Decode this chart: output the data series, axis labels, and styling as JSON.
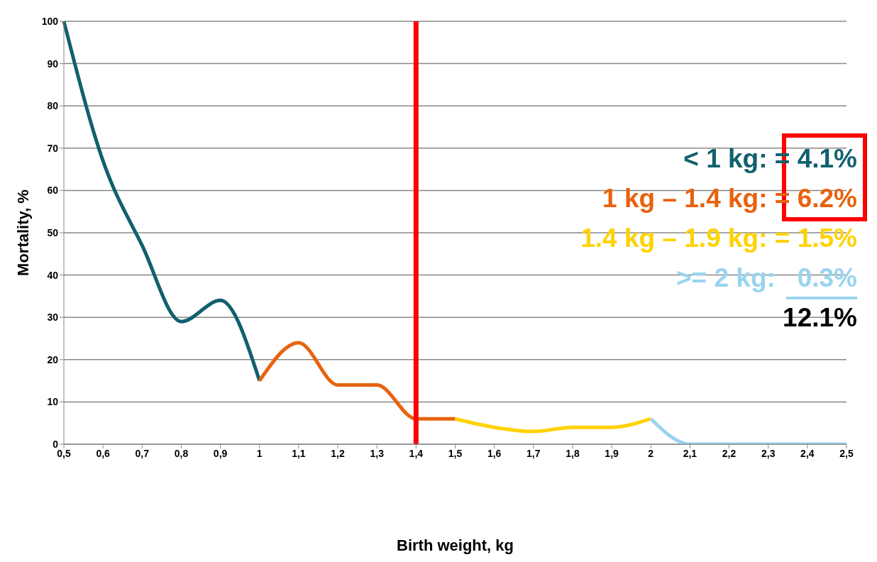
{
  "chart_data": {
    "type": "line",
    "xlabel": "Birth weight, kg",
    "ylabel": "Mortality, %",
    "categories": [
      "0,5",
      "0,6",
      "0,7",
      "0,8",
      "0,9",
      "1",
      "1,1",
      "1,2",
      "1,3",
      "1,4",
      "1,5",
      "1,6",
      "1,7",
      "1,8",
      "1,9",
      "2",
      "2,1",
      "2,2",
      "2,3",
      "2,4",
      "2,5"
    ],
    "series": [
      {
        "color": "#11606e",
        "values": [
          100,
          67,
          47,
          29,
          34,
          15,
          null,
          null,
          null,
          null,
          null,
          null,
          null,
          null,
          null,
          null,
          null,
          null,
          null,
          null,
          null
        ]
      },
      {
        "color": "#e8620f",
        "values": [
          null,
          null,
          null,
          null,
          null,
          15,
          24,
          14,
          14,
          6,
          6,
          null,
          null,
          null,
          null,
          null,
          null,
          null,
          null,
          null,
          null
        ]
      },
      {
        "color": "#ffd200",
        "values": [
          null,
          null,
          null,
          null,
          null,
          null,
          null,
          null,
          null,
          null,
          6,
          4,
          3,
          4,
          4,
          6,
          null,
          null,
          null,
          null,
          null
        ]
      },
      {
        "color": "#99d4f0",
        "values": [
          null,
          null,
          null,
          null,
          null,
          null,
          null,
          null,
          null,
          null,
          null,
          null,
          null,
          null,
          null,
          6,
          0,
          0,
          0,
          0,
          0
        ]
      }
    ],
    "ylim": [
      0,
      100
    ],
    "yticks": [
      0,
      10,
      20,
      30,
      40,
      50,
      60,
      70,
      80,
      90,
      100
    ],
    "grid": "y",
    "marker": "none",
    "line_style": "solid",
    "ref_lines": [
      {
        "axis": "x",
        "value": "1,4",
        "color": "#ff0000"
      }
    ],
    "annotations": [
      "< 1 kg: = 4.1%",
      "1 kg – 1.4 kg: = 6.2%",
      "1.4 kg – 1.9 kg: = 1.5%",
      ">= 2 kg:   0.3%",
      "12.1%"
    ]
  }
}
